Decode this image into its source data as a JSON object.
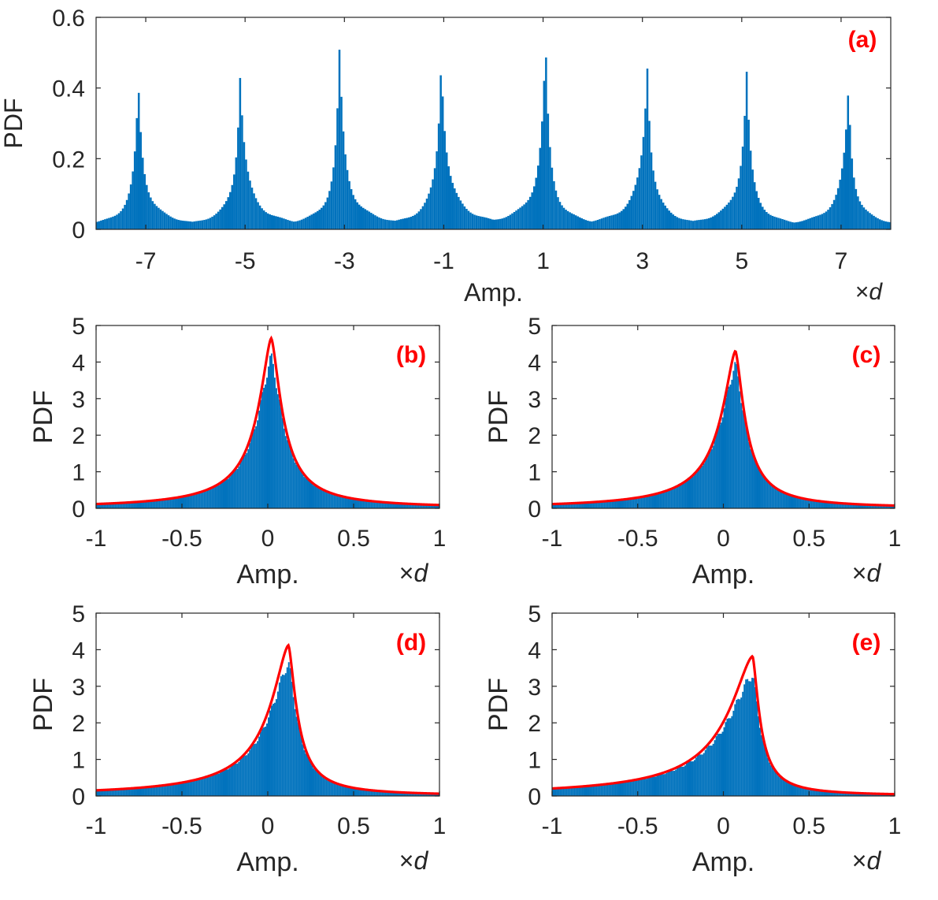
{
  "chart_data": [
    {
      "id": "a",
      "type": "bar",
      "panel_label": "(a)",
      "xlabel": "Amp.",
      "x_unit": "×d",
      "ylabel": "PDF",
      "xlim": [
        -8,
        8
      ],
      "ylim": [
        0,
        0.6
      ],
      "xticks": [
        -7,
        -5,
        -3,
        -1,
        1,
        3,
        5,
        7
      ],
      "xtick_labels": [
        "-7",
        "-5",
        "-3",
        "-1",
        "1",
        "3",
        "5",
        "7"
      ],
      "yticks": [
        0,
        0.2,
        0.4,
        0.6
      ],
      "ytick_labels": [
        "0",
        "0.2",
        "0.4",
        "0.6"
      ],
      "grid": false,
      "series": [
        {
          "kind": "histogram",
          "color": "#0072BD",
          "peaks": [
            {
              "x": -7.15,
              "pdf": 0.4
            },
            {
              "x": -5.1,
              "pdf": 0.45
            },
            {
              "x": -3.1,
              "pdf": 0.48
            },
            {
              "x": -1.05,
              "pdf": 0.5
            },
            {
              "x": 1.05,
              "pdf": 0.5
            },
            {
              "x": 3.1,
              "pdf": 0.48
            },
            {
              "x": 5.1,
              "pdf": 0.44
            },
            {
              "x": 7.15,
              "pdf": 0.4
            }
          ]
        }
      ]
    },
    {
      "id": "b",
      "type": "bar",
      "panel_label": "(b)",
      "xlabel": "Amp.",
      "x_unit": "×d",
      "ylabel": "PDF",
      "xlim": [
        -1,
        1
      ],
      "ylim": [
        0,
        5
      ],
      "xticks": [
        -1,
        -0.5,
        0,
        0.5,
        1
      ],
      "xtick_labels": [
        "-1",
        "-0.5",
        "0",
        "0.5",
        "1"
      ],
      "yticks": [
        0,
        1,
        2,
        3,
        4,
        5
      ],
      "ytick_labels": [
        "0",
        "1",
        "2",
        "3",
        "4",
        "5"
      ],
      "grid": false,
      "series": [
        {
          "kind": "histogram",
          "color": "#0072BD",
          "peak_x": 0.02,
          "peak_pdf": 4.1
        },
        {
          "kind": "line",
          "color": "#FF0000",
          "peak_x": 0.02,
          "peak_pdf": 4.65
        }
      ]
    },
    {
      "id": "c",
      "type": "bar",
      "panel_label": "(c)",
      "xlabel": "Amp.",
      "x_unit": "×d",
      "ylabel": "PDF",
      "xlim": [
        -1,
        1
      ],
      "ylim": [
        0,
        5
      ],
      "xticks": [
        -1,
        -0.5,
        0,
        0.5,
        1
      ],
      "xtick_labels": [
        "-1",
        "-0.5",
        "0",
        "0.5",
        "1"
      ],
      "yticks": [
        0,
        1,
        2,
        3,
        4,
        5
      ],
      "ytick_labels": [
        "0",
        "1",
        "2",
        "3",
        "4",
        "5"
      ],
      "grid": false,
      "series": [
        {
          "kind": "histogram",
          "color": "#0072BD",
          "peak_x": 0.07,
          "peak_pdf": 3.9
        },
        {
          "kind": "line",
          "color": "#FF0000",
          "peak_x": 0.07,
          "peak_pdf": 4.3
        }
      ]
    },
    {
      "id": "d",
      "type": "bar",
      "panel_label": "(d)",
      "xlabel": "Amp.",
      "x_unit": "×d",
      "ylabel": "PDF",
      "xlim": [
        -1,
        1
      ],
      "ylim": [
        0,
        5
      ],
      "xticks": [
        -1,
        -0.5,
        0,
        0.5,
        1
      ],
      "xtick_labels": [
        "-1",
        "-0.5",
        "0",
        "0.5",
        "1"
      ],
      "yticks": [
        0,
        1,
        2,
        3,
        4,
        5
      ],
      "ytick_labels": [
        "0",
        "1",
        "2",
        "3",
        "4",
        "5"
      ],
      "grid": false,
      "series": [
        {
          "kind": "histogram",
          "color": "#0072BD",
          "peak_x": 0.12,
          "peak_pdf": 3.6
        },
        {
          "kind": "line",
          "color": "#FF0000",
          "peak_x": 0.12,
          "peak_pdf": 4.12
        }
      ]
    },
    {
      "id": "e",
      "type": "bar",
      "panel_label": "(e)",
      "xlabel": "Amp.",
      "x_unit": "×d",
      "ylabel": "PDF",
      "xlim": [
        -1,
        1
      ],
      "ylim": [
        0,
        5
      ],
      "xticks": [
        -1,
        -0.5,
        0,
        0.5,
        1
      ],
      "xtick_labels": [
        "-1",
        "-0.5",
        "0",
        "0.5",
        "1"
      ],
      "yticks": [
        0,
        1,
        2,
        3,
        4,
        5
      ],
      "ytick_labels": [
        "0",
        "1",
        "2",
        "3",
        "4",
        "5"
      ],
      "grid": false,
      "series": [
        {
          "kind": "histogram",
          "color": "#0072BD",
          "peak_x": 0.17,
          "peak_pdf": 3.3
        },
        {
          "kind": "line",
          "color": "#FF0000",
          "peak_x": 0.17,
          "peak_pdf": 3.82
        }
      ]
    }
  ]
}
